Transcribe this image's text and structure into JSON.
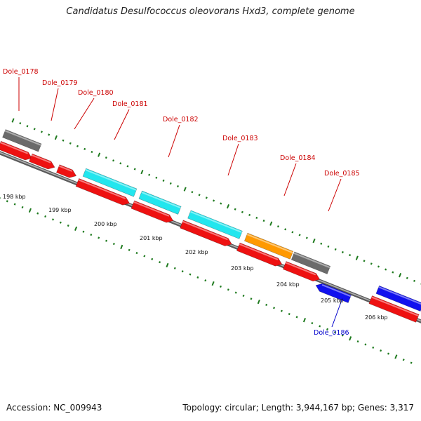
{
  "title": "Candidatus Desulfococcus oleovorans Hxd3, complete genome",
  "footer": {
    "accession": "Accession: NC_009943",
    "summary": "Topology: circular; Length: 3,944,167 bp; Genes: 3,317"
  },
  "colors": {
    "backbone": "#808080",
    "tick": "#1e7a1e",
    "label_forward": "#cc0000",
    "label_reverse": "#0000cc",
    "gene_red": "#ee1111",
    "gene_cyan": "#22e6ee",
    "gene_gray": "#6b6b6b",
    "gene_orange": "#ff9900",
    "gene_blue": "#1111ee"
  },
  "scale_labels": [
    "198 kbp",
    "199 kbp",
    "200 kbp",
    "201 kbp",
    "202 kbp",
    "203 kbp",
    "204 kbp",
    "205 kbp",
    "206 kbp"
  ],
  "gene_labels": [
    {
      "text": "Dole_0178",
      "strand": "forward"
    },
    {
      "text": "Dole_0179",
      "strand": "forward"
    },
    {
      "text": "Dole_0180",
      "strand": "forward"
    },
    {
      "text": "Dole_0181",
      "strand": "forward"
    },
    {
      "text": "Dole_0182",
      "strand": "forward"
    },
    {
      "text": "Dole_0183",
      "strand": "forward"
    },
    {
      "text": "Dole_0184",
      "strand": "forward"
    },
    {
      "text": "Dole_0185",
      "strand": "forward"
    },
    {
      "text": "Dole_0186",
      "strand": "reverse"
    }
  ]
}
